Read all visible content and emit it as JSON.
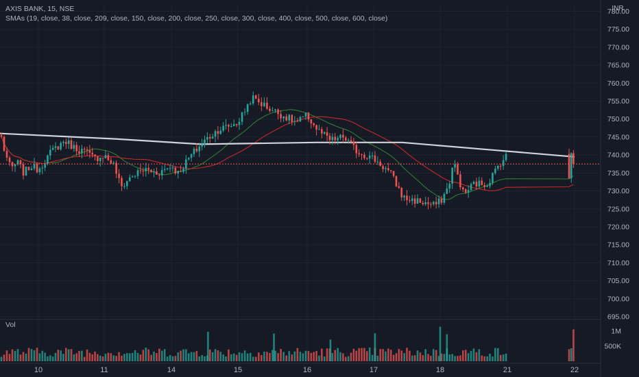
{
  "header": {
    "title": "AXIS BANK, 15, NSE",
    "indicator": "SMAs (19, close, 38, close, 209, close, 150, close, 200, close, 250, close, 300, close, 400, close, 500, close, 600, close)",
    "currency": "INR"
  },
  "volume_pane": {
    "label": "Vol"
  },
  "colors": {
    "background": "#161a25",
    "grid": "#1f2330",
    "up": "#26a69a",
    "down": "#ef5350",
    "sma_fast": "#2e7d32",
    "sma_mid": "#c62828",
    "sma_slow": "#d1d4dc",
    "text": "#b2b5be"
  },
  "chart_data": {
    "type": "candlestick",
    "price_axis": {
      "ticks": [
        "780.00",
        "775.00",
        "770.00",
        "765.00",
        "760.00",
        "755.00",
        "750.00",
        "745.00",
        "740.00",
        "735.00",
        "730.00",
        "725.00",
        "720.00",
        "715.00",
        "710.00",
        "705.00",
        "700.00",
        "695.00"
      ],
      "range": [
        695,
        782
      ]
    },
    "volume_axis": {
      "ticks": [
        "1M",
        "500K"
      ],
      "range": [
        0,
        1300000
      ]
    },
    "x_labels": [
      "10",
      "11",
      "14",
      "15",
      "16",
      "17",
      "18",
      "21",
      "22"
    ],
    "grid": true,
    "last_price": 737.5,
    "days": [
      {
        "label": "10",
        "path": [
          [
            746.5,
            0
          ],
          [
            741,
            0.12
          ],
          [
            736,
            0.28
          ],
          [
            738,
            0.45
          ],
          [
            735,
            0.62
          ],
          [
            737,
            0.8
          ],
          [
            736,
            1
          ]
        ]
      },
      {
        "label": "11",
        "path": [
          [
            736,
            0
          ],
          [
            741,
            0.2
          ],
          [
            744,
            0.4
          ],
          [
            742,
            0.55
          ],
          [
            741,
            0.7
          ],
          [
            739,
            0.85
          ],
          [
            740,
            1
          ]
        ]
      },
      {
        "label": "14",
        "path": [
          [
            740,
            0
          ],
          [
            737,
            0.15
          ],
          [
            731,
            0.25
          ],
          [
            734,
            0.4
          ],
          [
            736,
            0.6
          ],
          [
            735,
            0.8
          ],
          [
            737,
            1
          ]
        ]
      },
      {
        "label": "15",
        "path": [
          [
            737,
            0
          ],
          [
            735,
            0.1
          ],
          [
            740,
            0.3
          ],
          [
            744,
            0.5
          ],
          [
            747,
            0.7
          ],
          [
            749,
            1
          ]
        ]
      },
      {
        "label": "16",
        "path": [
          [
            749,
            0
          ],
          [
            756,
            0.2
          ],
          [
            753,
            0.45
          ],
          [
            751,
            0.65
          ],
          [
            749,
            0.85
          ],
          [
            751,
            1
          ]
        ]
      },
      {
        "label": "17",
        "path": [
          [
            751,
            0
          ],
          [
            747,
            0.15
          ],
          [
            744,
            0.35
          ],
          [
            745,
            0.55
          ],
          [
            741,
            0.75
          ],
          [
            739,
            1
          ]
        ]
      },
      {
        "label": "18",
        "path": [
          [
            739,
            0
          ],
          [
            735,
            0.25
          ],
          [
            728,
            0.45
          ],
          [
            727,
            0.7
          ],
          [
            726,
            0.9
          ],
          [
            727,
            1
          ]
        ]
      },
      {
        "label": "21",
        "path": [
          [
            727,
            0
          ],
          [
            731,
            0.12
          ],
          [
            738,
            0.2
          ],
          [
            729,
            0.35
          ],
          [
            732,
            0.5
          ],
          [
            732,
            0.7
          ],
          [
            738,
            0.9
          ],
          [
            740,
            1
          ]
        ]
      }
    ],
    "close_spike": [
      733.5,
      740.5,
      737.5
    ],
    "volume": {
      "avg_day": 360000,
      "spike_days": [
        {
          "day": 3,
          "at": 0.55,
          "value": 980000
        },
        {
          "day": 4,
          "at": 0.52,
          "value": 920000
        },
        {
          "day": 5,
          "at": 0.35,
          "value": 720000
        },
        {
          "day": 6,
          "at": 0.02,
          "value": 930000
        },
        {
          "day": 7,
          "at": 0.0,
          "value": 1150000
        },
        {
          "day": 7,
          "at": 0.1,
          "value": 900000
        }
      ],
      "last_value": 1060000
    },
    "sma": [
      {
        "name": "SMA 19",
        "color": "#2e7d32",
        "window": 19
      },
      {
        "name": "SMA 38",
        "color": "#c62828",
        "window": 38
      },
      {
        "name": "SMA 209",
        "color": "#d1d4dc",
        "fixed": [
          [
            0,
            746
          ],
          [
            0.2,
            744.5
          ],
          [
            0.35,
            743
          ],
          [
            0.55,
            743.5
          ],
          [
            0.7,
            743.5
          ],
          [
            0.85,
            741.5
          ],
          [
            1,
            739.5
          ]
        ]
      }
    ]
  }
}
